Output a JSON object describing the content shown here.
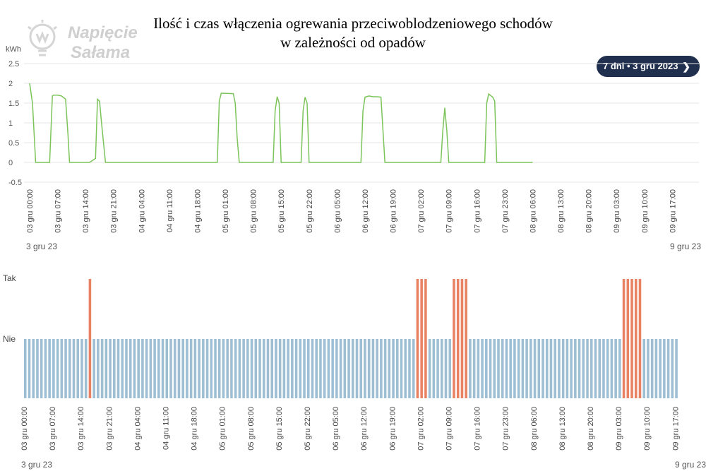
{
  "title_line1": "Ilość i czas włączenia ogrewania przeciwoblodzeniowego schodów",
  "title_line2": "w zależności od opadów",
  "logo_text_line1": "Napięcie",
  "logo_text_line2": "Sałama",
  "range_button": {
    "label": "7 dni • 3 gru 2023",
    "icon": "chevron-right-icon"
  },
  "colors": {
    "line": "#7cc45a",
    "bar_no": "#9dbed3",
    "bar_yes": "#e98262",
    "pill": "#1f2f4d"
  },
  "tick_labels": [
    "03 gru 00:00",
    "03 gru 07:00",
    "03 gru 14:00",
    "03 gru 21:00",
    "04 gru 04:00",
    "04 gru 11:00",
    "04 gru 18:00",
    "05 gru 01:00",
    "05 gru 08:00",
    "05 gru 15:00",
    "05 gru 22:00",
    "06 gru 05:00",
    "06 gru 12:00",
    "06 gru 19:00",
    "07 gru 02:00",
    "07 gru 09:00",
    "07 gru 16:00",
    "07 gru 23:00",
    "08 gru 06:00",
    "08 gru 13:00",
    "08 gru 20:00",
    "09 gru 03:00",
    "09 gru 10:00",
    "09 gru 17:00"
  ],
  "chart_data": [
    {
      "type": "line",
      "ylabel": "kWh",
      "ylim": [
        -0.5,
        2.5
      ],
      "yticks": [
        "2.5",
        "2",
        "1.5",
        "1",
        "0.5",
        "0",
        "-0.5"
      ],
      "x_range_hours": [
        0,
        162
      ],
      "x_start_label": "3 gru 23",
      "x_end_label": "9 gru 23",
      "grid": true,
      "series": [
        {
          "x_hours": [
            0,
            0.7,
            1.5,
            2,
            5,
            5.7,
            6,
            7,
            8,
            9,
            9.6,
            10,
            11,
            15,
            16.5,
            17,
            17.5,
            18,
            19,
            47,
            47.5,
            48,
            51,
            51.5,
            52,
            52.5,
            53,
            61,
            61.5,
            62,
            62.5,
            63,
            68,
            68.5,
            69,
            69.5,
            70,
            83,
            83.5,
            84,
            85,
            86,
            87,
            88,
            89,
            103,
            103.5,
            104,
            104.5,
            105,
            114,
            114.5,
            115,
            116,
            116.5,
            117,
            118,
            121,
            121.5,
            122,
            123,
            124,
            125,
            126
          ],
          "y": [
            2.0,
            1.5,
            0,
            0,
            0,
            1.68,
            1.7,
            1.7,
            1.68,
            1.6,
            0.7,
            0,
            0,
            0,
            0.1,
            1.6,
            1.55,
            1.0,
            0,
            0,
            1.55,
            1.75,
            1.74,
            1.5,
            0.6,
            0,
            0,
            0,
            1.3,
            1.66,
            1.5,
            0,
            0,
            1.3,
            1.65,
            1.5,
            0,
            0,
            1.3,
            1.65,
            1.68,
            1.66,
            1.66,
            1.65,
            0,
            0,
            0.8,
            1.38,
            0.8,
            0,
            0,
            1.5,
            1.73,
            1.65,
            1.55,
            0,
            0,
            0,
            0,
            0,
            0,
            0,
            0,
            0
          ]
        }
      ]
    },
    {
      "type": "bar",
      "y_categories": [
        "Nie",
        "Tak"
      ],
      "x_range_hours": [
        0,
        162
      ],
      "x_start_label": "3 gru 23",
      "x_end_label": "9 gru 23",
      "bar_count": 162,
      "tak_hours": [
        16,
        97,
        98,
        99,
        106,
        107,
        108,
        109,
        148,
        149,
        150,
        151,
        152
      ]
    }
  ]
}
